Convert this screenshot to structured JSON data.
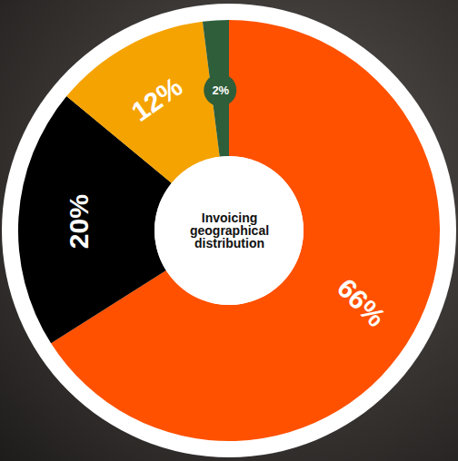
{
  "chart_data": {
    "type": "donut",
    "title": "Invoicing geographical distribution",
    "values": [
      66,
      20,
      12,
      2
    ],
    "value_labels": [
      "66%",
      "20%",
      "12%",
      "2%"
    ],
    "colors": [
      "#ff5100",
      "#000000",
      "#f5a300",
      "#2e5e3a"
    ],
    "data_labels": true
  }
}
